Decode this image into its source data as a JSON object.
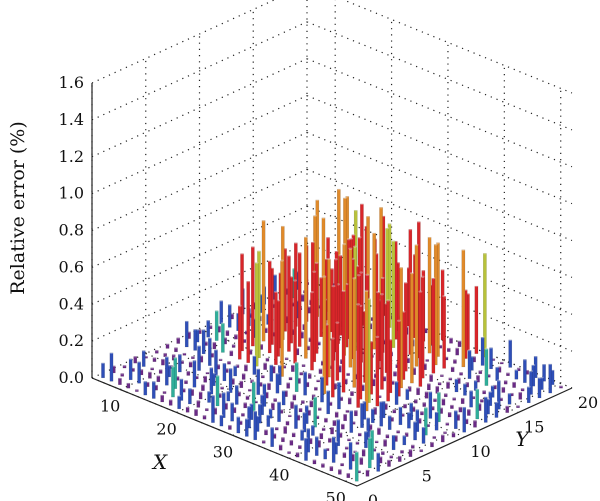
{
  "chart_data": {
    "type": "bar3d",
    "zlabel": "Relative error (%)",
    "xlabel": "X",
    "ylabel": "Y",
    "zlim": [
      0.0,
      1.6
    ],
    "z_ticks": [
      "0.0",
      "0.2",
      "0.4",
      "0.6",
      "0.8",
      "1.0",
      "1.2",
      "1.4",
      "1.6"
    ],
    "x_ticks": [
      "10",
      "20",
      "30",
      "40",
      "50"
    ],
    "y_ticks": [
      "0",
      "5",
      "10",
      "15",
      "20"
    ],
    "xlim": [
      5,
      52
    ],
    "ylim": [
      0,
      20
    ],
    "grid": true,
    "colors": {
      "violet": "#6a2a86",
      "blue": "#2f4fb8",
      "teal": "#2fae9a",
      "yellow_green": "#b8c23a",
      "orange": "#e08a2a",
      "red": "#d8262a",
      "dark_red": "#6b1a12"
    },
    "highlighted_bars": [
      {
        "x": 10,
        "y": 16,
        "value": 0.72,
        "color": "dark_red"
      },
      {
        "x": 30,
        "y": 17,
        "value": 0.68,
        "color": "red"
      },
      {
        "x": 32,
        "y": 17,
        "value": 0.74,
        "color": "red"
      },
      {
        "x": 20,
        "y": 18,
        "value": 0.66,
        "color": "red"
      },
      {
        "x": 26,
        "y": 16,
        "value": 0.63,
        "color": "orange"
      },
      {
        "x": 36,
        "y": 15,
        "value": 0.55,
        "color": "red"
      },
      {
        "x": 18,
        "y": 12,
        "value": 0.52,
        "color": "red"
      },
      {
        "x": 22,
        "y": 10,
        "value": 0.49,
        "color": "red"
      },
      {
        "x": 40,
        "y": 13,
        "value": 0.46,
        "color": "orange"
      },
      {
        "x": 14,
        "y": 14,
        "value": 0.45,
        "color": "red"
      },
      {
        "x": 44,
        "y": 17,
        "value": 0.2,
        "color": "teal"
      },
      {
        "x": 48,
        "y": 9,
        "value": 0.15,
        "color": "teal"
      }
    ]
  }
}
